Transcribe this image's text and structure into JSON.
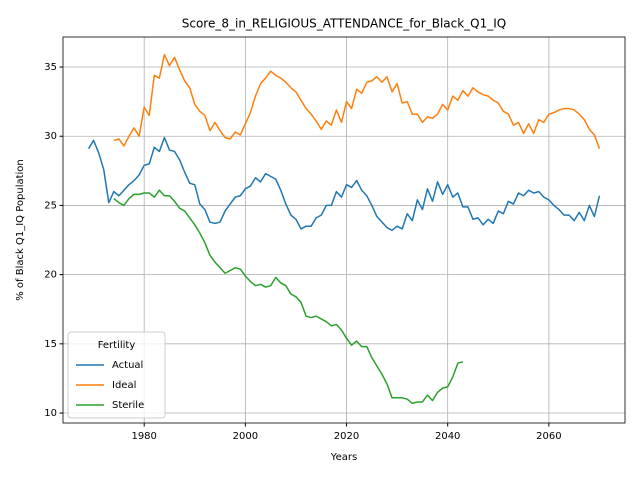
{
  "chart_data": {
    "type": "line",
    "title": "Score_8_in_RELIGIOUS_ATTENDANCE_for_Black_Q1_IQ",
    "xlabel": "Years",
    "ylabel": "% of Black Q1_IQ Population",
    "legend_title": "Fertility",
    "legend_loc": "lower left",
    "grid": true,
    "xlim": [
      1963.95,
      2075.05
    ],
    "xticks": [
      1980,
      2000,
      2020,
      2040,
      2060
    ],
    "ylim": [
      9.28,
      37.17
    ],
    "yticks": [
      10,
      15,
      20,
      25,
      30,
      35
    ],
    "x": [
      1969,
      1970,
      1971,
      1972,
      1973,
      1974,
      1975,
      1976,
      1977,
      1978,
      1979,
      1980,
      1981,
      1982,
      1983,
      1984,
      1985,
      1986,
      1987,
      1988,
      1989,
      1990,
      1991,
      1992,
      1993,
      1994,
      1995,
      1996,
      1997,
      1998,
      1999,
      2000,
      2001,
      2002,
      2003,
      2004,
      2005,
      2006,
      2007,
      2008,
      2009,
      2010,
      2011,
      2012,
      2013,
      2014,
      2015,
      2016,
      2017,
      2018,
      2019,
      2020,
      2021,
      2022,
      2023,
      2024,
      2025,
      2026,
      2027,
      2028,
      2029,
      2030,
      2031,
      2032,
      2033,
      2034,
      2035,
      2036,
      2037,
      2038,
      2039,
      2040,
      2041,
      2042,
      2043,
      2044,
      2045,
      2046,
      2047,
      2048,
      2049,
      2050,
      2051,
      2052,
      2053,
      2054,
      2055,
      2056,
      2057,
      2058,
      2059,
      2060,
      2061,
      2062,
      2063,
      2064,
      2065,
      2066,
      2067,
      2068,
      2069,
      2070
    ],
    "series": [
      {
        "name": "Actual",
        "color": "#1f77b4",
        "values": [
          29.1,
          29.7,
          28.8,
          27.6,
          25.2,
          26.0,
          25.7,
          26.1,
          26.5,
          26.8,
          27.2,
          27.9,
          28.0,
          29.2,
          28.9,
          29.9,
          29.0,
          28.9,
          28.3,
          27.4,
          26.6,
          26.5,
          25.1,
          24.7,
          23.8,
          23.7,
          23.8,
          24.6,
          25.1,
          25.6,
          25.7,
          26.2,
          26.4,
          27.0,
          26.7,
          27.3,
          27.1,
          26.9,
          26.1,
          25.1,
          24.3,
          24.0,
          23.3,
          23.5,
          23.5,
          24.1,
          24.3,
          25.0,
          25.0,
          26.0,
          25.6,
          26.5,
          26.3,
          26.8,
          26.1,
          25.7,
          25.0,
          24.2,
          23.8,
          23.4,
          23.2,
          23.5,
          23.3,
          24.4,
          23.9,
          25.4,
          24.7,
          26.2,
          25.3,
          26.7,
          25.8,
          26.5,
          25.6,
          25.9,
          24.9,
          24.9,
          24.0,
          24.1,
          23.6,
          24.0,
          23.7,
          24.6,
          24.4,
          25.3,
          25.1,
          25.9,
          25.7,
          26.1,
          25.9,
          26.0,
          25.6,
          25.4,
          25.0,
          24.7,
          24.3,
          24.3,
          23.9,
          24.5,
          23.9,
          25.0,
          24.2,
          25.7
        ]
      },
      {
        "name": "Ideal",
        "color": "#ff7f0e",
        "values": [
          null,
          null,
          null,
          null,
          null,
          29.7,
          29.8,
          29.3,
          30.0,
          30.6,
          30.0,
          32.1,
          31.5,
          34.4,
          34.2,
          35.9,
          35.1,
          35.7,
          34.8,
          34.0,
          33.5,
          32.3,
          31.8,
          31.5,
          30.4,
          31.0,
          30.4,
          29.9,
          29.8,
          30.3,
          30.1,
          30.9,
          31.7,
          32.9,
          33.8,
          34.2,
          34.7,
          34.4,
          34.2,
          33.9,
          33.5,
          33.2,
          32.6,
          32.0,
          31.6,
          31.1,
          30.5,
          31.1,
          30.8,
          31.9,
          31.0,
          32.5,
          32.0,
          33.4,
          33.1,
          33.9,
          34.0,
          34.3,
          33.9,
          34.3,
          33.2,
          33.8,
          32.4,
          32.5,
          31.6,
          31.6,
          31.0,
          31.4,
          31.3,
          31.6,
          32.3,
          31.9,
          32.9,
          32.6,
          33.3,
          32.9,
          33.5,
          33.2,
          33.0,
          32.9,
          32.6,
          32.4,
          31.8,
          31.6,
          30.8,
          31.0,
          30.2,
          30.9,
          30.2,
          31.2,
          31.0,
          31.6,
          31.7,
          31.9,
          32.0,
          32.0,
          31.9,
          31.6,
          31.2,
          30.5,
          30.1,
          29.1
        ]
      },
      {
        "name": "Sterile",
        "color": "#2ca02c",
        "values": [
          null,
          null,
          null,
          null,
          null,
          25.5,
          25.2,
          25.0,
          25.5,
          25.8,
          25.8,
          25.9,
          25.9,
          25.6,
          26.1,
          25.7,
          25.7,
          25.3,
          24.8,
          24.6,
          24.1,
          23.6,
          23.0,
          22.3,
          21.4,
          20.9,
          20.5,
          20.1,
          20.3,
          20.5,
          20.4,
          19.9,
          19.5,
          19.2,
          19.3,
          19.1,
          19.2,
          19.8,
          19.4,
          19.2,
          18.6,
          18.4,
          18.0,
          17.0,
          16.9,
          17.0,
          16.8,
          16.6,
          16.3,
          16.4,
          16.0,
          15.4,
          14.9,
          15.2,
          14.8,
          14.8,
          14.0,
          13.4,
          12.8,
          12.1,
          11.1,
          11.1,
          11.1,
          11.0,
          10.7,
          10.8,
          10.8,
          11.3,
          10.9,
          11.5,
          11.8,
          11.9,
          12.6,
          13.6,
          13.7,
          null,
          null,
          null,
          null,
          null,
          null,
          null,
          null,
          null,
          null,
          null,
          null,
          null,
          null,
          null,
          null,
          null,
          null,
          null,
          null,
          null,
          null,
          null,
          null,
          null,
          null,
          null
        ]
      }
    ]
  }
}
